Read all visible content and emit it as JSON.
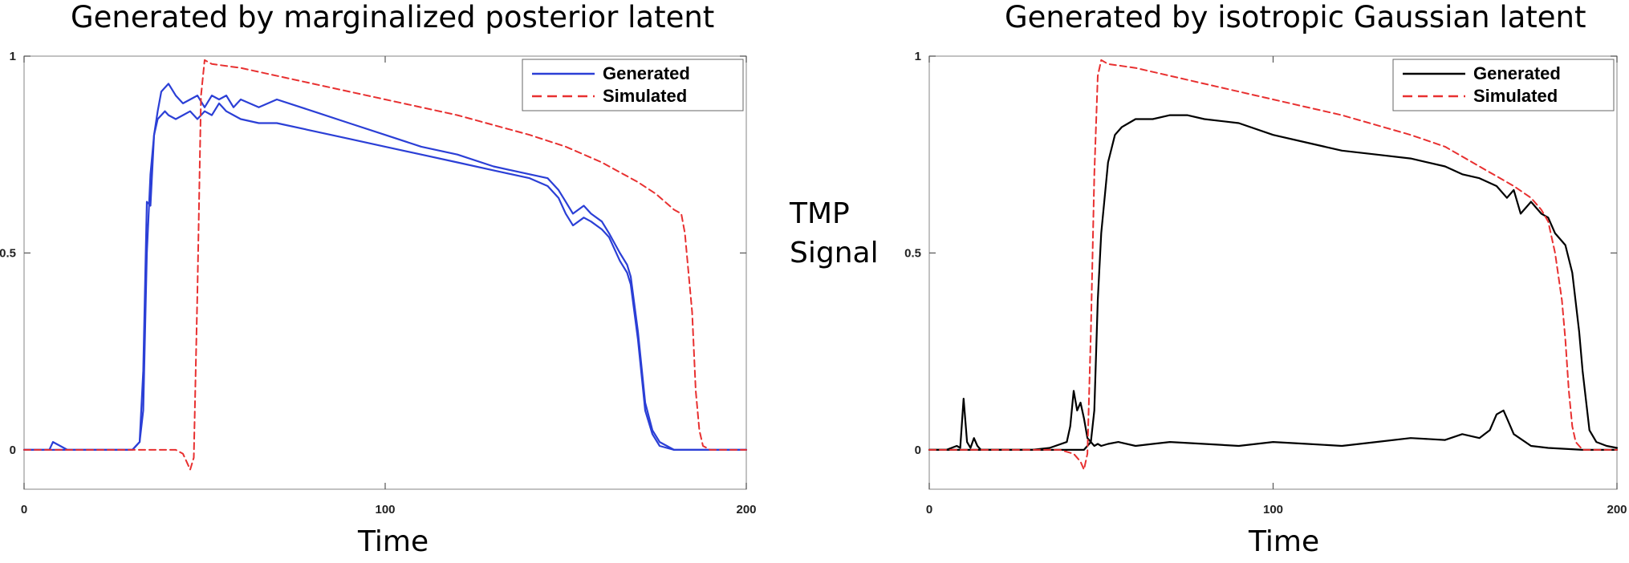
{
  "shared": {
    "ylabel_line1": "TMP",
    "ylabel_line2": "Signal"
  },
  "chart_data": [
    {
      "type": "line",
      "title": "Generated by marginalized posterior latent",
      "xlabel": "Time",
      "ylabel": "TMP Signal",
      "xlim": [
        0,
        200
      ],
      "ylim": [
        -0.1,
        1
      ],
      "xticks": [
        0,
        100,
        200
      ],
      "yticks": [
        0,
        0.5,
        1
      ],
      "xtick_labels": [
        "0",
        "100",
        "200"
      ],
      "ytick_labels": [
        "0",
        "0.5",
        "1"
      ],
      "grid": false,
      "legend_position": "top-right",
      "legend": [
        "Generated",
        "Simulated"
      ],
      "colors": {
        "generated": "#2b3fd6",
        "simulated": "#e83030"
      },
      "series": [
        {
          "name": "Generated",
          "style": "solid",
          "color": "#2b3fd6",
          "x": [
            0,
            7,
            8,
            10,
            12,
            13,
            30,
            32,
            33,
            34,
            35,
            36,
            37,
            38,
            39,
            40,
            42,
            44,
            46,
            48,
            50,
            52,
            54,
            56,
            58,
            60,
            65,
            70,
            80,
            90,
            100,
            110,
            120,
            130,
            140,
            145,
            148,
            150,
            152,
            155,
            157,
            160,
            162,
            165,
            167,
            168,
            170,
            172,
            174,
            176,
            178,
            180,
            185,
            190,
            200
          ],
          "y": [
            0,
            0,
            0.02,
            0.01,
            0,
            0,
            0,
            0.02,
            0.2,
            0.63,
            0.62,
            0.8,
            0.86,
            0.91,
            0.92,
            0.93,
            0.9,
            0.88,
            0.89,
            0.9,
            0.87,
            0.9,
            0.89,
            0.9,
            0.87,
            0.89,
            0.87,
            0.89,
            0.86,
            0.83,
            0.8,
            0.77,
            0.75,
            0.72,
            0.7,
            0.69,
            0.66,
            0.63,
            0.6,
            0.62,
            0.6,
            0.58,
            0.55,
            0.5,
            0.47,
            0.44,
            0.3,
            0.12,
            0.05,
            0.02,
            0.01,
            0,
            0,
            0,
            0
          ]
        },
        {
          "name": "Generated",
          "style": "solid",
          "color": "#2b3fd6",
          "x": [
            0,
            30,
            32,
            33,
            34,
            35,
            36,
            37,
            38,
            39,
            40,
            42,
            44,
            46,
            48,
            50,
            52,
            54,
            56,
            58,
            60,
            65,
            70,
            80,
            90,
            100,
            110,
            120,
            130,
            140,
            145,
            148,
            150,
            152,
            155,
            157,
            160,
            162,
            165,
            167,
            168,
            170,
            172,
            174,
            176,
            178,
            180,
            185,
            190,
            200
          ],
          "y": [
            0,
            0,
            0.02,
            0.1,
            0.5,
            0.7,
            0.8,
            0.84,
            0.85,
            0.86,
            0.85,
            0.84,
            0.85,
            0.86,
            0.84,
            0.86,
            0.85,
            0.88,
            0.86,
            0.85,
            0.84,
            0.83,
            0.83,
            0.81,
            0.79,
            0.77,
            0.75,
            0.73,
            0.71,
            0.69,
            0.67,
            0.64,
            0.6,
            0.57,
            0.59,
            0.58,
            0.56,
            0.54,
            0.48,
            0.45,
            0.42,
            0.28,
            0.1,
            0.04,
            0.01,
            0.005,
            0,
            0,
            0,
            0
          ]
        },
        {
          "name": "Simulated",
          "style": "dashed",
          "color": "#e83030",
          "x": [
            0,
            40,
            42,
            44,
            45,
            46,
            47,
            48,
            49,
            50,
            52,
            60,
            80,
            100,
            120,
            140,
            150,
            160,
            170,
            175,
            180,
            182,
            183,
            185,
            186,
            187,
            188,
            190,
            200
          ],
          "y": [
            0,
            0,
            0,
            -0.01,
            -0.03,
            -0.05,
            -0.02,
            0.4,
            0.9,
            0.99,
            0.98,
            0.97,
            0.93,
            0.89,
            0.85,
            0.8,
            0.77,
            0.73,
            0.68,
            0.65,
            0.61,
            0.6,
            0.55,
            0.35,
            0.15,
            0.05,
            0.01,
            0,
            0
          ]
        }
      ]
    },
    {
      "type": "line",
      "title": "Generated by isotropic Gaussian latent",
      "xlabel": "Time",
      "ylabel": "TMP Signal",
      "xlim": [
        0,
        200
      ],
      "ylim": [
        -0.1,
        1
      ],
      "xticks": [
        0,
        100,
        200
      ],
      "yticks": [
        0,
        0.5,
        1
      ],
      "xtick_labels": [
        "0",
        "100",
        "200"
      ],
      "ytick_labels": [
        "0",
        "0.5",
        "1"
      ],
      "grid": false,
      "legend_position": "top-right",
      "legend": [
        "Generated",
        "Simulated"
      ],
      "colors": {
        "generated": "#000000",
        "simulated": "#e83030"
      },
      "series": [
        {
          "name": "Generated",
          "style": "solid",
          "color": "#000000",
          "x": [
            0,
            5,
            8,
            9,
            10,
            11,
            12,
            13,
            14,
            15,
            20,
            30,
            35,
            40,
            41,
            42,
            43,
            44,
            45,
            46,
            47,
            48,
            49,
            50,
            52,
            55,
            60,
            65,
            70,
            80,
            90,
            100,
            110,
            120,
            130,
            140,
            150,
            155,
            160,
            163,
            165,
            167,
            168,
            170,
            175,
            180,
            190,
            200
          ],
          "y": [
            0,
            0,
            0.01,
            0.005,
            0.13,
            0.02,
            0.005,
            0.03,
            0.01,
            0,
            0,
            0,
            0.005,
            0.02,
            0.06,
            0.15,
            0.1,
            0.12,
            0.08,
            0.03,
            0.02,
            0.01,
            0.015,
            0.01,
            0.015,
            0.02,
            0.01,
            0.015,
            0.02,
            0.015,
            0.01,
            0.02,
            0.015,
            0.01,
            0.02,
            0.03,
            0.025,
            0.04,
            0.03,
            0.05,
            0.09,
            0.1,
            0.08,
            0.04,
            0.01,
            0.005,
            0,
            0
          ]
        },
        {
          "name": "Generated",
          "style": "solid",
          "color": "#000000",
          "x": [
            0,
            40,
            45,
            47,
            48,
            49,
            50,
            52,
            54,
            56,
            58,
            60,
            65,
            70,
            75,
            80,
            90,
            100,
            110,
            120,
            130,
            140,
            150,
            155,
            160,
            165,
            168,
            170,
            172,
            175,
            178,
            180,
            182,
            185,
            187,
            189,
            190,
            192,
            194,
            197,
            200
          ],
          "y": [
            0,
            0,
            0,
            0.02,
            0.1,
            0.38,
            0.55,
            0.73,
            0.8,
            0.82,
            0.83,
            0.84,
            0.84,
            0.85,
            0.85,
            0.84,
            0.83,
            0.8,
            0.78,
            0.76,
            0.75,
            0.74,
            0.72,
            0.7,
            0.69,
            0.67,
            0.64,
            0.66,
            0.6,
            0.63,
            0.6,
            0.59,
            0.55,
            0.52,
            0.45,
            0.3,
            0.2,
            0.05,
            0.02,
            0.01,
            0.005
          ]
        },
        {
          "name": "Simulated",
          "style": "dashed",
          "color": "#e83030",
          "x": [
            0,
            38,
            42,
            44,
            45,
            46,
            47,
            48,
            49,
            50,
            52,
            60,
            80,
            100,
            120,
            140,
            150,
            160,
            170,
            175,
            178,
            180,
            182,
            184,
            185,
            186,
            187,
            188,
            190,
            200
          ],
          "y": [
            0,
            0,
            -0.01,
            -0.03,
            -0.05,
            -0.01,
            0.3,
            0.7,
            0.95,
            0.99,
            0.98,
            0.97,
            0.93,
            0.89,
            0.85,
            0.8,
            0.77,
            0.72,
            0.67,
            0.64,
            0.61,
            0.58,
            0.5,
            0.38,
            0.28,
            0.15,
            0.06,
            0.02,
            0,
            0
          ]
        }
      ]
    }
  ]
}
